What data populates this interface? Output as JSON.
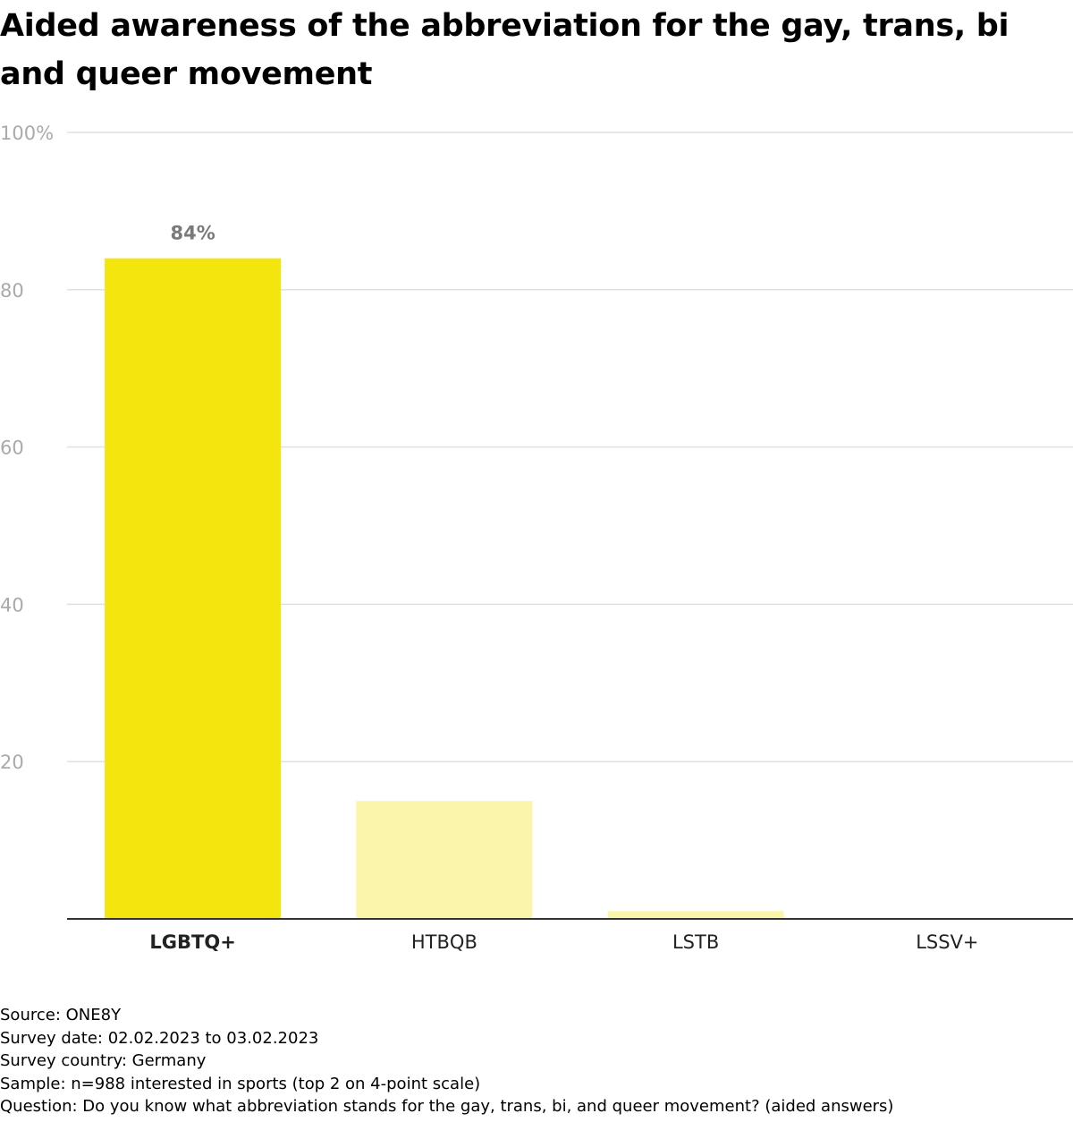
{
  "title": "Aided awareness of the abbreviation for the gay, trans, bi and queer movement",
  "chart_data": {
    "type": "bar",
    "title": "Aided awareness of the abbreviation for the gay, trans, bi and queer movement",
    "categories": [
      "LGBTQ+",
      "HTBQB",
      "LSTB",
      "LSSV+"
    ],
    "values": [
      84,
      15,
      1,
      0
    ],
    "data_labels": [
      "84%",
      "",
      "",
      ""
    ],
    "highlight_category": "LGBTQ+",
    "y_ticks": [
      20,
      40,
      60,
      80,
      100
    ],
    "y_tick_labels": [
      "20",
      "40",
      "60",
      "80",
      "100%"
    ],
    "ylim": [
      0,
      100
    ],
    "xlabel": "",
    "ylabel": "",
    "grid": true,
    "colors": {
      "highlight": "#f4e50e",
      "other": "#fbf5ac",
      "grid": "#e0e0e0",
      "axis": "#333333",
      "tick_label": "#aaaaaa",
      "data_label": "#7a7a7a"
    }
  },
  "footer": {
    "source": "Source: ONE8Y",
    "survey_date": "Survey date: 02.02.2023 to 03.02.2023",
    "survey_country": "Survey country: Germany",
    "sample": "Sample: n=988 interested in sports (top 2 on 4-point scale)",
    "question": "Question: Do you know what abbreviation stands for the gay, trans, bi, and queer movement? (aided answers)"
  }
}
